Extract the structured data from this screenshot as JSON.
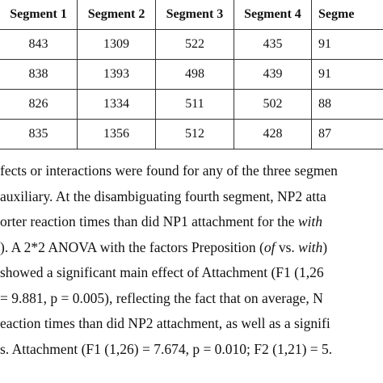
{
  "table": {
    "headers": [
      "Segment 1",
      "Segment 2",
      "Segment 3",
      "Segment 4",
      "Segme"
    ],
    "rows": [
      [
        "843",
        "1309",
        "522",
        "435",
        "91"
      ],
      [
        "838",
        "1393",
        "498",
        "439",
        "91"
      ],
      [
        "826",
        "1334",
        "511",
        "502",
        "88"
      ],
      [
        "835",
        "1356",
        "512",
        "428",
        "87"
      ]
    ]
  },
  "paragraph": {
    "lines": [
      {
        "pre": "fects or interactions were found for any of the three segmen",
        "em": "",
        "post": ""
      },
      {
        "pre": "auxiliary. At the disambiguating fourth segment, NP2 atta",
        "em": "",
        "post": ""
      },
      {
        "pre": "orter reaction times than did NP1 attachment for the ",
        "em": "with",
        "post": ""
      },
      {
        "pre": "). A 2*2 ANOVA with the factors Preposition (",
        "em": "of",
        "post": " vs. ",
        "em2": "with",
        "post2": ")"
      },
      {
        "pre": "showed a significant main effect of Attachment (F1 (1,26",
        "em": "",
        "post": ""
      },
      {
        "pre": " = 9.881, p = 0.005), reflecting the fact that on average, N",
        "em": "",
        "post": ""
      },
      {
        "pre": "eaction times than did NP2 attachment, as well as a signifi",
        "em": "",
        "post": ""
      },
      {
        "pre": "s. Attachment (F1 (1,26) = 7.674, p = 0.010; F2 (1,21) = 5.",
        "em": "",
        "post": ""
      }
    ]
  }
}
